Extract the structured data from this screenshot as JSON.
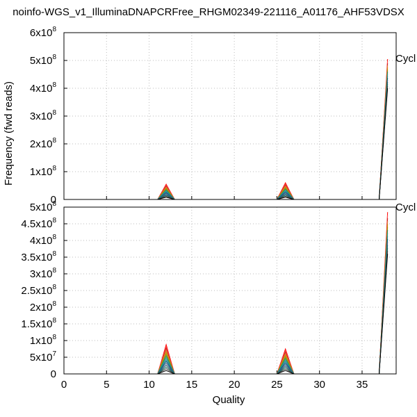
{
  "chart_data": {
    "type": "line",
    "title": "noinfo-WGS_v1_IlluminaDNAPCRFree_RHGM02349-221116_A01176_AHF53VDSX",
    "xlabel": "Quality",
    "ylabel": "Frequency (fwd reads)",
    "xlim": [
      0,
      39
    ],
    "x_ticks": [
      "0",
      "5",
      "10",
      "15",
      "20",
      "25",
      "30",
      "35"
    ],
    "grid": true,
    "series_colors": [
      "#ff0000",
      "#ff4b4b",
      "#c81e1e",
      "#e07b39",
      "#cc8a00",
      "#9a9a00",
      "#2e8b57",
      "#1f9c8c",
      "#2a7f9e",
      "#00607a",
      "#4a5a8a",
      "#206070",
      "#1a6a5a",
      "#404040",
      "#000000"
    ],
    "panels": [
      {
        "name": "top",
        "ylim": [
          0,
          600000000
        ],
        "y_ticks": [
          {
            "value": 0,
            "base": "0",
            "exp": ""
          },
          {
            "value": 100000000,
            "base": "1x10",
            "exp": "8"
          },
          {
            "value": 200000000,
            "base": "2x10",
            "exp": "8"
          },
          {
            "value": 300000000,
            "base": "3x10",
            "exp": "8"
          },
          {
            "value": 400000000,
            "base": "4x10",
            "exp": "8"
          },
          {
            "value": 500000000,
            "base": "5x10",
            "exp": "8"
          },
          {
            "value": 600000000,
            "base": "6x10",
            "exp": "8"
          }
        ],
        "legend_label": "Cycl",
        "peaks": [
          {
            "quality": 12,
            "max": 55000000,
            "min": 8000000
          },
          {
            "quality": 26,
            "max": 60000000,
            "min": 8000000
          }
        ],
        "right_edge": {
          "x_start": 37,
          "quality": 38,
          "max": 505000000,
          "min": 400000000
        },
        "series_count": 15
      },
      {
        "name": "bottom",
        "ylim": [
          0,
          500000000
        ],
        "y_ticks": [
          {
            "value": 0,
            "base": "0",
            "exp": ""
          },
          {
            "value": 50000000,
            "base": "5x10",
            "exp": "7"
          },
          {
            "value": 100000000,
            "base": "1x10",
            "exp": "8"
          },
          {
            "value": 150000000,
            "base": "1.5x10",
            "exp": "8"
          },
          {
            "value": 200000000,
            "base": "2x10",
            "exp": "8"
          },
          {
            "value": 250000000,
            "base": "2.5x10",
            "exp": "8"
          },
          {
            "value": 300000000,
            "base": "3x10",
            "exp": "8"
          },
          {
            "value": 350000000,
            "base": "3.5x10",
            "exp": "8"
          },
          {
            "value": 400000000,
            "base": "4x10",
            "exp": "8"
          },
          {
            "value": 450000000,
            "base": "4.5x10",
            "exp": "8"
          },
          {
            "value": 500000000,
            "base": "5x10",
            "exp": "8"
          }
        ],
        "legend_label": "Cycl",
        "peaks": [
          {
            "quality": 12,
            "max": 88000000,
            "min": 10000000
          },
          {
            "quality": 26,
            "max": 75000000,
            "min": 10000000
          }
        ],
        "right_edge": {
          "x_start": 37,
          "quality": 38,
          "max": 485000000,
          "min": 360000000
        },
        "series_count": 15
      }
    ]
  }
}
